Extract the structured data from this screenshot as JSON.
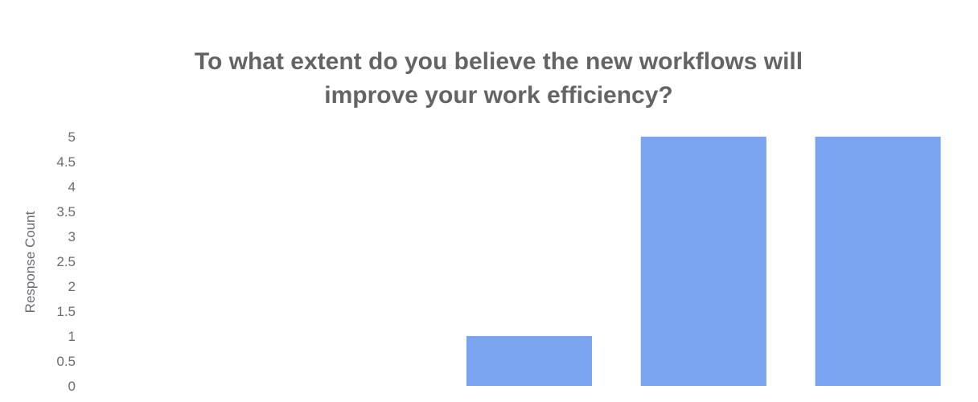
{
  "chart_data": {
    "type": "bar",
    "title_lines": [
      "To what extent do you believe the new workflows will",
      "improve your work efficiency?"
    ],
    "xlabel": "",
    "ylabel": "Response Count",
    "categories": [
      "",
      "",
      "",
      "",
      ""
    ],
    "values": [
      0,
      0,
      1,
      5,
      5
    ],
    "ylim": [
      0,
      5
    ],
    "yticks": [
      "0",
      "0.5",
      "1",
      "1.5",
      "2",
      "2.5",
      "3",
      "3.5",
      "4",
      "4.5",
      "5"
    ],
    "grid": false,
    "legend": "none",
    "bar_color": "#7aa3f0"
  }
}
